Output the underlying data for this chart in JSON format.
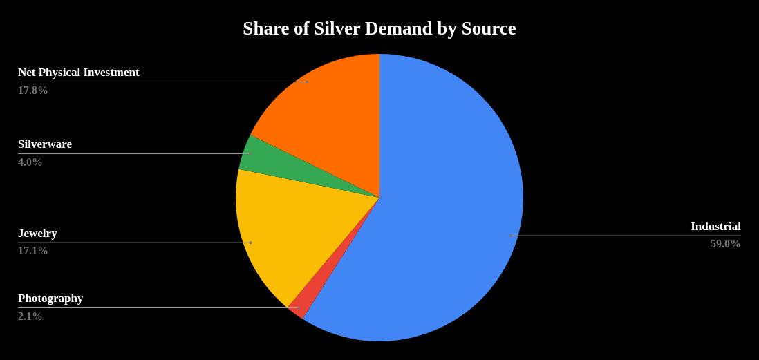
{
  "chart_data": {
    "type": "pie",
    "title": "Share of Silver Demand by Source",
    "categories": [
      "Industrial",
      "Photography",
      "Jewelry",
      "Silverware",
      "Net Physical Investment"
    ],
    "values": [
      59.0,
      2.1,
      17.1,
      4.0,
      17.8
    ],
    "colors": [
      "#4285f4",
      "#ea4335",
      "#fbbc04",
      "#34a853",
      "#ff6d01"
    ],
    "value_labels": [
      "59.0%",
      "2.1%",
      "17.1%",
      "4.0%",
      "17.8%"
    ],
    "legend": false
  }
}
